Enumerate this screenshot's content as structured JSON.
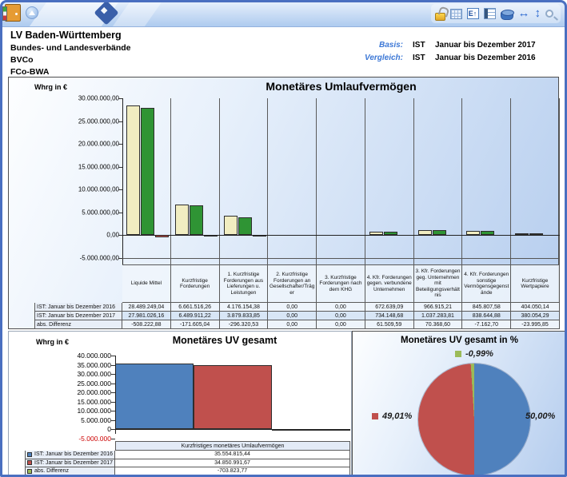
{
  "titlebar": {
    "icons_left": [
      "door-icon",
      "up-circle-icon",
      "diamond-logo"
    ],
    "icons_right": [
      "unlock-icon",
      "table-icon",
      "chart-e-icon",
      "report-icon",
      "database-icon",
      "swap-horizontal-icon",
      "swap-vertical-icon",
      "search-icon"
    ],
    "chart_e_glyph": "E↑",
    "swap_h_glyph": "↔",
    "swap_v_glyph": "↕"
  },
  "header": {
    "org_lines": [
      "LV Baden-Württemberg",
      "Bundes- und Landesverbände",
      "BVCo",
      "FCo-BWA"
    ],
    "basis": {
      "label": "Basis:",
      "scenario": "IST",
      "period": "Januar bis Dezember 2017"
    },
    "vergleich": {
      "label": "Vergleich:",
      "scenario": "IST",
      "period": "Januar bis Dezember 2016"
    }
  },
  "colors": {
    "frame_blue": "#4a6fc0"
  },
  "chart_data": [
    {
      "type": "bar",
      "title": "Monetäres Umlaufvermögen",
      "ylabel": "Whrg in €",
      "ylim": [
        -5000000,
        30000000
      ],
      "ytick_labels": [
        "30.000.000,00",
        "25.000.000,00",
        "20.000.000,00",
        "15.000.000,00",
        "10.000.000,00",
        "5.000.000,00",
        "0,00",
        "-5.000.000,00"
      ],
      "categories": [
        "Liquide Mittel",
        "Kurzfristige Forderungen",
        "1. Kurzfristige Forderungen aus Lieferungen u. Leistungen",
        "2. Kurzfristige Forderungen an Gesellschafter/Träger",
        "3. Kurzfristige Forderungen nach dem KHG",
        "4. Kfr. Forderungen gegen. verbundene Unternehmen",
        "3. Kfr. Forderungen geg. Unternehmen mit Beteiligungsverhältnis",
        "4. Kfr. Forderungen sonstige Vermögensgegenstände",
        "Kurzfristige Wertpapiere"
      ],
      "series": [
        {
          "name": "IST: Januar bis Dezember 2016",
          "color": "#f1edc1",
          "values": [
            28489249.04,
            6661516.26,
            4176154.38,
            0,
            0,
            672639.09,
            966915.21,
            845807.58,
            404050.14
          ],
          "display": [
            "28.489.249,04",
            "6.661.516,26",
            "4.176.154,38",
            "0,00",
            "0,00",
            "672.639,09",
            "966.915,21",
            "845.807,58",
            "404.050,14"
          ]
        },
        {
          "name": "IST: Januar bis Dezember 2017",
          "color": "#2f9434",
          "values": [
            27981026.16,
            6489911.22,
            3879833.85,
            0,
            0,
            734148.68,
            1037283.81,
            838644.88,
            380054.29
          ],
          "display": [
            "27.981.026,16",
            "6.489.911,22",
            "3.879.833,85",
            "0,00",
            "0,00",
            "734.148,68",
            "1.037.283,81",
            "838.644,88",
            "380.054,29"
          ]
        },
        {
          "name": "abs. Differenz",
          "color": "#c9504a",
          "values": [
            -508222.88,
            -171605.04,
            -296320.53,
            0,
            0,
            61509.59,
            70368.6,
            -7162.7,
            -23995.85
          ],
          "display": [
            "-508.222,88",
            "-171.605,04",
            "-296.320,53",
            "0,00",
            "0,00",
            "61.509,59",
            "70.368,60",
            "-7.162,70",
            "-23.995,85"
          ]
        }
      ]
    },
    {
      "type": "bar",
      "title": "Monetäres UV gesamt",
      "ylabel": "Whrg in €",
      "category": "Kurzfristiges monetäres Umlaufvermögen",
      "ylim": [
        -5000000,
        40000000
      ],
      "ytick_labels": [
        "40.000.000",
        "35.000.000",
        "30.000.000",
        "25.000.000",
        "20.000.000",
        "15.000.000",
        "10.000.000",
        "5.000.000",
        "0",
        "-5.000.000"
      ],
      "negative_tick_color": "#cc0000",
      "series": [
        {
          "name": "IST: Januar bis Dezember 2016",
          "color": "#4f81bd",
          "value": 35554815.44,
          "display": "35.554.815,44"
        },
        {
          "name": "IST: Januar bis Dezember 2017",
          "color": "#c0504d",
          "value": 34850991.67,
          "display": "34.850.991,67"
        },
        {
          "name": "abs. Differenz",
          "color": "#9bbb59",
          "value": -703823.77,
          "display": "-703.823,77"
        }
      ]
    },
    {
      "type": "pie",
      "title": "Monetäres UV gesamt in %",
      "slices": [
        {
          "label": "50,00%",
          "value": 50.0,
          "color": "#4f81bd"
        },
        {
          "label": "49,01%",
          "value": 49.01,
          "color": "#c0504d"
        },
        {
          "label": "-0,99%",
          "value": -0.99,
          "color": "#9bbb59"
        }
      ]
    }
  ]
}
